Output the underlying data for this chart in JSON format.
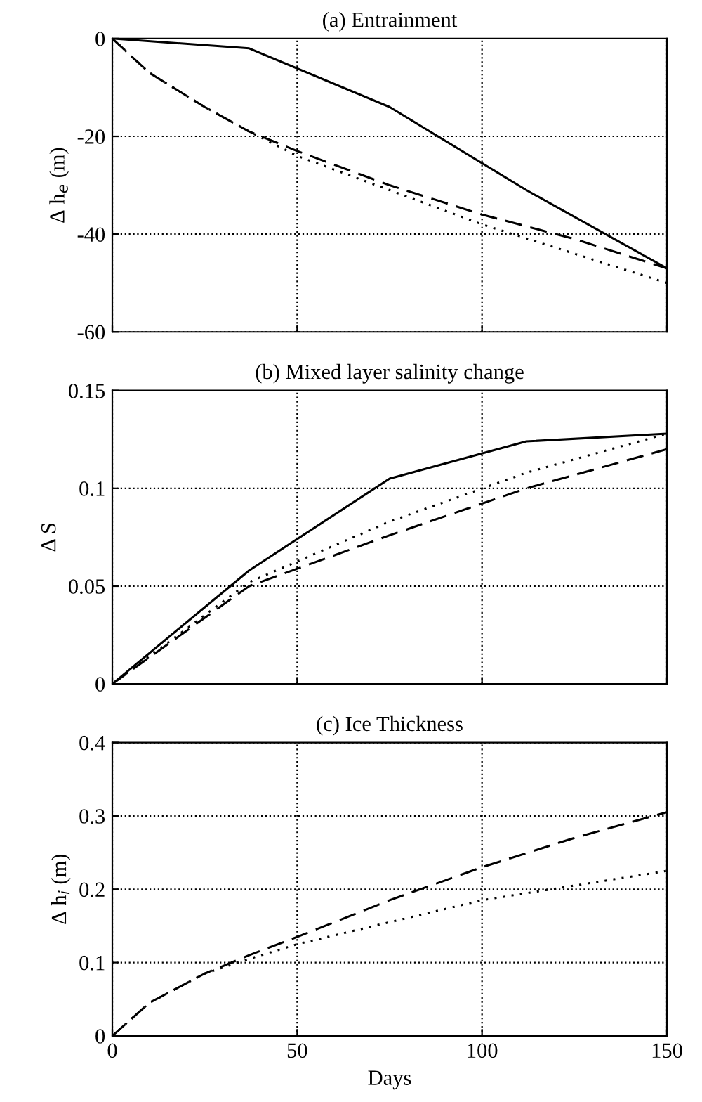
{
  "chart_data": [
    {
      "type": "line",
      "title": "(a) Entrainment",
      "ylabel": "Δ h$_{e}$ (m)",
      "xlim": [
        0,
        150
      ],
      "xticks": [
        0,
        50,
        100,
        150
      ],
      "ylim": [
        -60,
        0
      ],
      "yticks": [
        -60,
        -40,
        -20,
        0
      ],
      "grid": true,
      "tick_labels": "y",
      "marker": "none",
      "series": [
        {
          "color": "#000000",
          "line_style": "solid",
          "x": [
            0,
            37,
            75,
            112,
            150
          ],
          "values": [
            0,
            -2,
            -14,
            -31,
            -47
          ]
        },
        {
          "color": "#000000",
          "line_style": "dashed",
          "x": [
            0,
            10,
            25,
            37,
            50,
            75,
            100,
            125,
            150
          ],
          "values": [
            0,
            -7,
            -14,
            -19,
            -23,
            -30,
            -36,
            -41,
            -47
          ]
        },
        {
          "color": "#000000",
          "line_style": "dotted",
          "x": [
            0,
            10,
            25,
            37,
            50,
            75,
            100,
            125,
            150
          ],
          "values": [
            0,
            -7,
            -14,
            -19,
            -24,
            -31,
            -38,
            -44,
            -50
          ]
        }
      ]
    },
    {
      "type": "line",
      "title": "(b) Mixed layer salinity change",
      "ylabel": "Δ S",
      "xlim": [
        0,
        150
      ],
      "xticks": [
        0,
        50,
        100,
        150
      ],
      "ylim": [
        0,
        0.15
      ],
      "yticks": [
        0,
        0.05,
        0.1,
        0.15
      ],
      "grid": true,
      "tick_labels": "y",
      "marker": "none",
      "series": [
        {
          "color": "#000000",
          "line_style": "solid",
          "x": [
            0,
            37,
            75,
            112,
            150
          ],
          "values": [
            0,
            0.058,
            0.105,
            0.124,
            0.128
          ]
        },
        {
          "color": "#000000",
          "line_style": "dashed",
          "x": [
            0,
            37,
            75,
            112,
            150
          ],
          "values": [
            0,
            0.05,
            0.076,
            0.1,
            0.12
          ]
        },
        {
          "color": "#000000",
          "line_style": "dotted",
          "x": [
            0,
            37,
            75,
            112,
            150
          ],
          "values": [
            0,
            0.052,
            0.083,
            0.108,
            0.128
          ]
        }
      ]
    },
    {
      "type": "line",
      "title": "(c) Ice Thickness",
      "ylabel": "Δ h$_{i}$ (m)",
      "xlabel": "Days",
      "xlim": [
        0,
        150
      ],
      "xticks": [
        0,
        50,
        100,
        150
      ],
      "ylim": [
        0,
        0.4
      ],
      "yticks": [
        0,
        0.1,
        0.2,
        0.3,
        0.4
      ],
      "grid": true,
      "marker": "none",
      "series": [
        {
          "color": "#000000",
          "line_style": "dashed",
          "x": [
            0,
            10,
            25,
            37,
            50,
            75,
            100,
            125,
            150
          ],
          "values": [
            0,
            0.045,
            0.085,
            0.11,
            0.135,
            0.185,
            0.23,
            0.27,
            0.305
          ]
        },
        {
          "color": "#000000",
          "line_style": "dotted",
          "x": [
            0,
            10,
            25,
            37,
            50,
            75,
            100,
            125,
            150
          ],
          "values": [
            0,
            0.045,
            0.085,
            0.105,
            0.125,
            0.155,
            0.185,
            0.205,
            0.225
          ]
        }
      ]
    }
  ]
}
